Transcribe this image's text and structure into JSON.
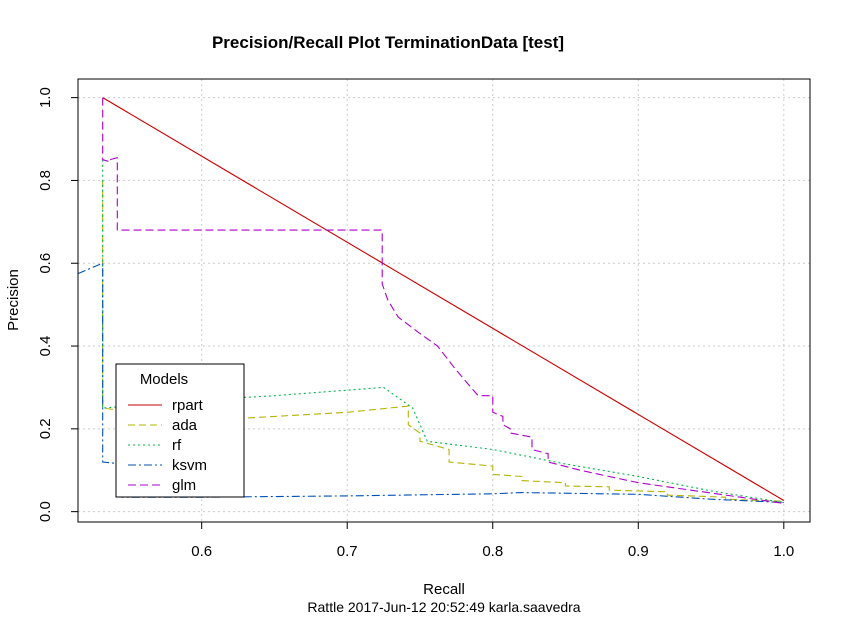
{
  "chart_data": {
    "type": "line",
    "title": "Precision/Recall Plot  TerminationData [test]",
    "xlabel": "Recall",
    "ylabel": "Precision",
    "subtitle": "Rattle 2017-Jun-12 20:52:49 karla.saavedra",
    "xlim": [
      0.515,
      1.018
    ],
    "ylim": [
      -0.025,
      1.045
    ],
    "xticks": [
      0.6,
      0.7,
      0.8,
      0.9,
      1.0
    ],
    "xtick_labels": [
      "0.6",
      "0.7",
      "0.8",
      "0.9",
      "1.0"
    ],
    "yticks": [
      0.0,
      0.2,
      0.4,
      0.6,
      0.8,
      1.0
    ],
    "ytick_labels": [
      "0.0",
      "0.2",
      "0.4",
      "0.6",
      "0.8",
      "1.0"
    ],
    "grid": true,
    "legend": {
      "title": "Models",
      "position": "bottom-left"
    },
    "series": [
      {
        "name": "rpart",
        "color": "#cc0000",
        "dash": "solid",
        "x": [
          0.532,
          1.0
        ],
        "y": [
          1.0,
          0.027
        ]
      },
      {
        "name": "ada",
        "color": "#b3b300",
        "dash": "7,4",
        "x": [
          0.532,
          0.532,
          0.6,
          0.65,
          0.7,
          0.742,
          0.742,
          0.75,
          0.75,
          0.77,
          0.77,
          0.8,
          0.8,
          0.82,
          0.82,
          0.85,
          0.85,
          0.88,
          0.88,
          0.92,
          0.92,
          0.96,
          0.96,
          1.0
        ],
        "y": [
          0.8,
          0.25,
          0.22,
          0.23,
          0.24,
          0.255,
          0.21,
          0.19,
          0.17,
          0.15,
          0.12,
          0.11,
          0.09,
          0.085,
          0.075,
          0.07,
          0.062,
          0.06,
          0.052,
          0.048,
          0.04,
          0.035,
          0.03,
          0.025
        ]
      },
      {
        "name": "rf",
        "color": "#00b34d",
        "dash": "2,3",
        "x": [
          0.532,
          0.532,
          0.6,
          0.65,
          0.725,
          0.745,
          0.755,
          0.8,
          0.85,
          0.9,
          0.95,
          1.0
        ],
        "y": [
          0.85,
          0.25,
          0.27,
          0.28,
          0.3,
          0.25,
          0.17,
          0.15,
          0.115,
          0.085,
          0.05,
          0.022
        ]
      },
      {
        "name": "ksvm",
        "color": "#0050b3",
        "dash": "8,3,2,3",
        "x": [
          0.515,
          0.532,
          0.532,
          0.545,
          0.545,
          0.6,
          0.7,
          0.8,
          0.82,
          0.9,
          0.95,
          1.0
        ],
        "y": [
          0.575,
          0.6,
          0.12,
          0.115,
          0.035,
          0.035,
          0.038,
          0.043,
          0.046,
          0.042,
          0.03,
          0.022
        ]
      },
      {
        "name": "glm",
        "color": "#aa00cc",
        "dash": "8,4",
        "x": [
          0.532,
          0.532,
          0.537,
          0.537,
          0.542,
          0.542,
          0.724,
          0.724,
          0.728,
          0.735,
          0.75,
          0.762,
          0.773,
          0.785,
          0.79,
          0.8,
          0.8,
          0.807,
          0.807,
          0.812,
          0.812,
          0.827,
          0.827,
          0.838,
          0.838,
          0.86,
          0.88,
          0.9,
          0.95,
          1.0
        ],
        "y": [
          1.0,
          0.85,
          0.845,
          0.85,
          0.855,
          0.68,
          0.68,
          0.55,
          0.51,
          0.47,
          0.43,
          0.4,
          0.35,
          0.3,
          0.28,
          0.28,
          0.24,
          0.23,
          0.21,
          0.2,
          0.19,
          0.18,
          0.15,
          0.14,
          0.12,
          0.1,
          0.085,
          0.07,
          0.045,
          0.02
        ]
      }
    ]
  }
}
